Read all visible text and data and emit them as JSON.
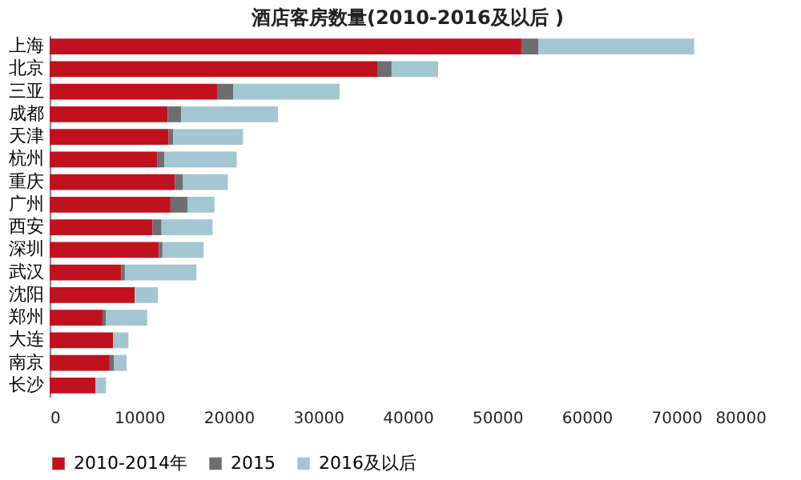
{
  "chart_data": {
    "type": "bar",
    "title": "酒店客房数量(2010-2016及以后 )",
    "orientation": "horizontal",
    "stacked": true,
    "categories": [
      "上海",
      "北京",
      "三亚",
      "成都",
      "天津",
      "杭州",
      "重庆",
      "广州",
      "西安",
      "深圳",
      "武汉",
      "沈阳",
      "郑州",
      "大连",
      "南京",
      "长沙"
    ],
    "series": [
      {
        "name": "2010-2014年",
        "color": "#c0111f",
        "values": [
          52700,
          36600,
          18700,
          13200,
          13300,
          12000,
          14000,
          13500,
          11500,
          12200,
          8000,
          9500,
          5900,
          7100,
          6700,
          5100
        ]
      },
      {
        "name": "2015",
        "color": "#6d6e71",
        "values": [
          1900,
          1600,
          1800,
          1500,
          500,
          800,
          900,
          1900,
          1000,
          400,
          400,
          0,
          400,
          0,
          500,
          0
        ]
      },
      {
        "name": "2016及以后",
        "color": "#a4c6d0",
        "values": [
          17400,
          5200,
          11900,
          10800,
          7800,
          8100,
          5000,
          3000,
          5700,
          4600,
          8000,
          2600,
          4600,
          1700,
          1400,
          1200
        ]
      }
    ],
    "xlim": [
      0,
      80000
    ],
    "xticks": [
      0,
      10000,
      20000,
      30000,
      40000,
      50000,
      60000,
      70000,
      80000
    ],
    "grid": false,
    "legend": "bottom"
  }
}
